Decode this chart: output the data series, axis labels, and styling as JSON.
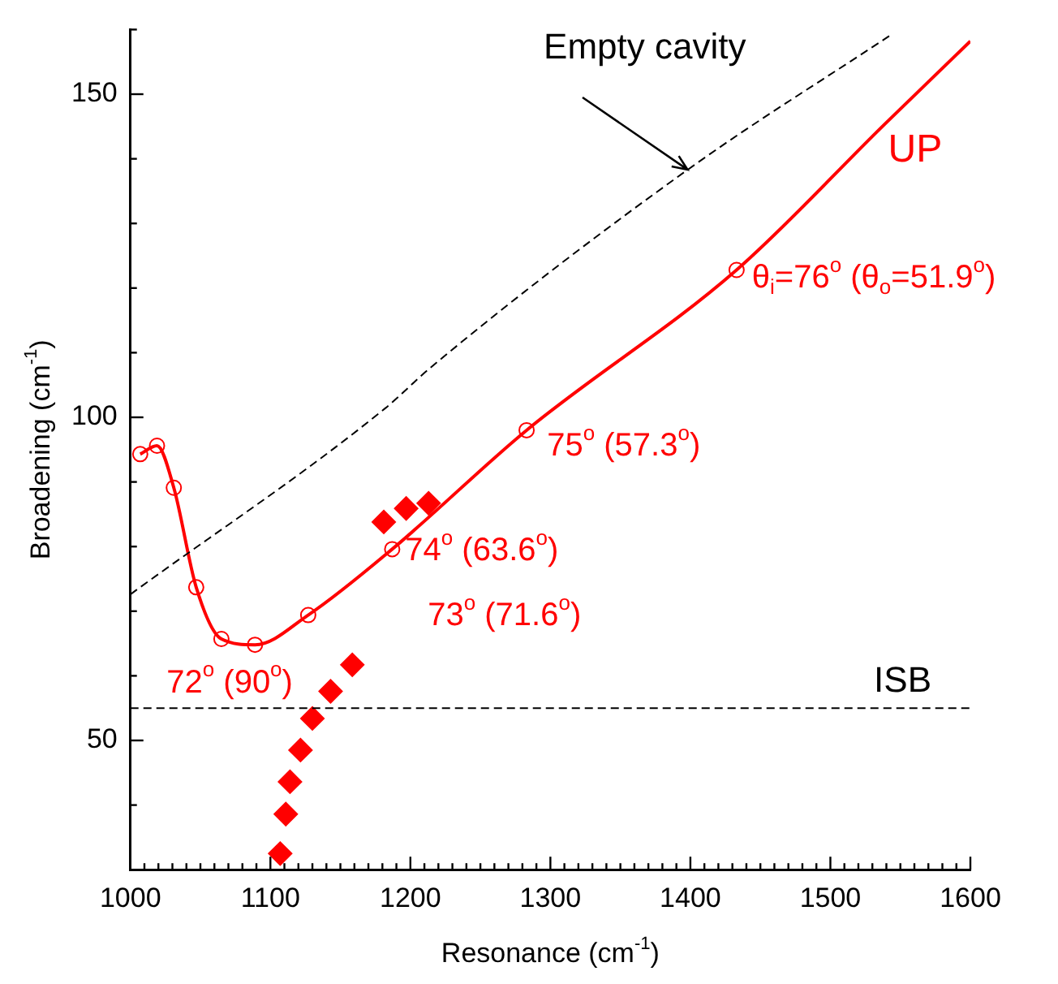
{
  "chart_data": {
    "type": "line",
    "xlabel": "Resonance (cm$^{-1}$)",
    "ylabel": "Broadening (cm$^{-1}$)",
    "xlim": [
      1000,
      1600
    ],
    "ylim": [
      30,
      160
    ],
    "xticks": [
      1000,
      {
        "value": 1010,
        "label": null
      },
      {
        "value": 1020,
        "label": null
      },
      {
        "value": 1030,
        "label": null
      },
      {
        "value": 1040,
        "label": null
      },
      {
        "value": 1050,
        "label": null
      },
      {
        "value": 1060,
        "label": null
      },
      {
        "value": 1070,
        "label": null
      },
      {
        "value": 1080,
        "label": null
      },
      {
        "value": 1090,
        "label": null
      },
      1100,
      {
        "value": 1110,
        "label": null
      },
      {
        "value": 1120,
        "label": null
      },
      {
        "value": 1130,
        "label": null
      },
      {
        "value": 1140,
        "label": null
      },
      {
        "value": 1150,
        "label": null
      },
      {
        "value": 1160,
        "label": null
      },
      {
        "value": 1170,
        "label": null
      },
      {
        "value": 1180,
        "label": null
      },
      {
        "value": 1190,
        "label": null
      },
      1200,
      {
        "value": 1210,
        "label": null
      },
      {
        "value": 1220,
        "label": null
      },
      {
        "value": 1230,
        "label": null
      },
      {
        "value": 1240,
        "label": null
      },
      {
        "value": 1250,
        "label": null
      },
      {
        "value": 1260,
        "label": null
      },
      {
        "value": 1270,
        "label": null
      },
      {
        "value": 1280,
        "label": null
      },
      {
        "value": 1290,
        "label": null
      },
      1300,
      {
        "value": 1310,
        "label": null
      },
      {
        "value": 1320,
        "label": null
      },
      {
        "value": 1330,
        "label": null
      },
      {
        "value": 1340,
        "label": null
      },
      {
        "value": 1350,
        "label": null
      },
      {
        "value": 1360,
        "label": null
      },
      {
        "value": 1370,
        "label": null
      },
      {
        "value": 1380,
        "label": null
      },
      {
        "value": 1390,
        "label": null
      },
      1400,
      {
        "value": 1410,
        "label": null
      },
      {
        "value": 1420,
        "label": null
      },
      {
        "value": 1430,
        "label": null
      },
      {
        "value": 1440,
        "label": null
      },
      {
        "value": 1450,
        "label": null
      },
      {
        "value": 1460,
        "label": null
      },
      {
        "value": 1470,
        "label": null
      },
      {
        "value": 1480,
        "label": null
      },
      {
        "value": 1490,
        "label": null
      },
      1500,
      {
        "value": 1510,
        "label": null
      },
      {
        "value": 1520,
        "label": null
      },
      {
        "value": 1530,
        "label": null
      },
      {
        "value": 1540,
        "label": null
      },
      {
        "value": 1550,
        "label": null
      },
      {
        "value": 1560,
        "label": null
      },
      {
        "value": 1570,
        "label": null
      },
      {
        "value": 1580,
        "label": null
      },
      {
        "value": 1590,
        "label": null
      },
      1600
    ],
    "yticks": [
      {
        "value": 30,
        "label": null
      },
      {
        "value": 40,
        "label": null
      },
      50,
      {
        "value": 60,
        "label": null
      },
      {
        "value": 70,
        "label": null
      },
      {
        "value": 80,
        "label": null
      },
      {
        "value": 90,
        "label": null
      },
      100,
      {
        "value": 110,
        "label": null
      },
      {
        "value": 120,
        "label": null
      },
      {
        "value": 130,
        "label": null
      },
      {
        "value": 140,
        "label": null
      },
      150,
      {
        "value": 160,
        "label": null
      }
    ],
    "grid": false,
    "legend": false,
    "series": [
      {
        "type": "line",
        "color": "#000000",
        "line_style": "dashed",
        "marker": "none",
        "x": [
          1000,
          1182,
          1215,
          1398,
          1542
        ],
        "values": [
          72.6,
          101.4,
          107.8,
          138.3,
          159
        ]
      },
      {
        "type": "line",
        "color": "#ff0000",
        "line_style": "solid",
        "marker": "none",
        "x": [
          1007,
          1019,
          1031,
          1047,
          1065,
          1089,
          1127,
          1187,
          1283,
          1433,
          1539,
          1600
        ],
        "values": [
          94.3,
          95.6,
          89.1,
          73.7,
          65.7,
          64.8,
          69.4,
          79.6,
          98.0,
          122.8,
          145.4,
          158.2
        ]
      },
      {
        "type": "scatter",
        "color": "#ff0000",
        "marker": "circle",
        "x": [
          1007,
          1019,
          1031,
          1047,
          1065,
          1089,
          1127,
          1187,
          1283,
          1433
        ],
        "values": [
          94.3,
          95.6,
          89.1,
          73.7,
          65.7,
          64.8,
          69.4,
          79.6,
          98.0,
          122.8
        ]
      },
      {
        "type": "scatter",
        "color": "#ff0000",
        "marker": "diamond",
        "x": [
          1107,
          1111,
          1114,
          1121.5,
          1130,
          1143,
          1158.5,
          1181,
          1197,
          1213
        ],
        "values": [
          32.5,
          38.6,
          43.6,
          48.5,
          53.4,
          57.6,
          61.7,
          83.8,
          85.9,
          86.7
        ]
      }
    ],
    "ref_lines": [
      {
        "axis": "y",
        "value": 55,
        "label": "ISB",
        "color": "#000000",
        "line_style": "dashed"
      }
    ],
    "annotations": [
      {
        "text": "Empty cavity",
        "x": 1398,
        "y": 138.3
      },
      "UP",
      "θ$_{i}$=76$^{o}$ (θ$_{o}$=51.9$^{o}$)",
      "75$^{o}$ (57.3$^{o}$)",
      "74$^{o}$ (63.6$^{o}$)",
      "73$^{o}$ (71.6$^{o}$)",
      "72$^{o}$ (90$^{o}$)"
    ]
  }
}
